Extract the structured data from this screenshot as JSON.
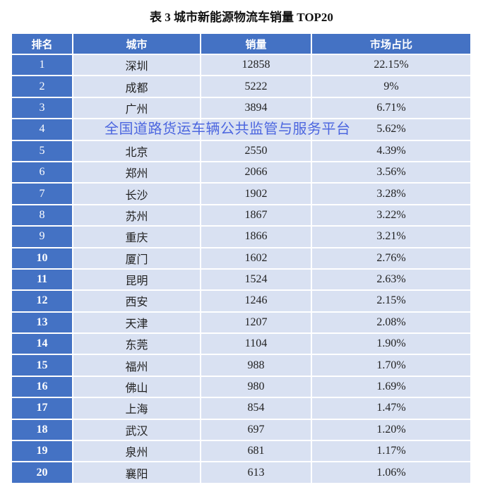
{
  "title": "表 3  城市新能源物流车销量 TOP20",
  "watermark": "全国道路货运车辆公共监管与服务平台",
  "colors": {
    "header_bg": "#4472c4",
    "cell_bg": "#d9e1f2",
    "watermark": "#3250dc"
  },
  "headers": [
    "排名",
    "城市",
    "销量",
    "市场占比"
  ],
  "rows": [
    {
      "rank": "1",
      "city": "深圳",
      "sales": "12858",
      "share": "22.15%"
    },
    {
      "rank": "2",
      "city": "成都",
      "sales": "5222",
      "share": "9%"
    },
    {
      "rank": "3",
      "city": "广州",
      "sales": "3894",
      "share": "6.71%"
    },
    {
      "rank": "4",
      "city": "",
      "sales": "",
      "share": "5.62%"
    },
    {
      "rank": "5",
      "city": "北京",
      "sales": "2550",
      "share": "4.39%"
    },
    {
      "rank": "6",
      "city": "郑州",
      "sales": "2066",
      "share": "3.56%"
    },
    {
      "rank": "7",
      "city": "长沙",
      "sales": "1902",
      "share": "3.28%"
    },
    {
      "rank": "8",
      "city": "苏州",
      "sales": "1867",
      "share": "3.22%"
    },
    {
      "rank": "9",
      "city": "重庆",
      "sales": "1866",
      "share": "3.21%"
    },
    {
      "rank": "10",
      "city": "厦门",
      "sales": "1602",
      "share": "2.76%"
    },
    {
      "rank": "11",
      "city": "昆明",
      "sales": "1524",
      "share": "2.63%"
    },
    {
      "rank": "12",
      "city": "西安",
      "sales": "1246",
      "share": "2.15%"
    },
    {
      "rank": "13",
      "city": "天津",
      "sales": "1207",
      "share": "2.08%"
    },
    {
      "rank": "14",
      "city": "东莞",
      "sales": "1104",
      "share": "1.90%"
    },
    {
      "rank": "15",
      "city": "福州",
      "sales": "988",
      "share": "1.70%"
    },
    {
      "rank": "16",
      "city": "佛山",
      "sales": "980",
      "share": "1.69%"
    },
    {
      "rank": "17",
      "city": "上海",
      "sales": "854",
      "share": "1.47%"
    },
    {
      "rank": "18",
      "city": "武汉",
      "sales": "697",
      "share": "1.20%"
    },
    {
      "rank": "19",
      "city": "泉州",
      "sales": "681",
      "share": "1.17%"
    },
    {
      "rank": "20",
      "city": "襄阳",
      "sales": "613",
      "share": "1.06%"
    }
  ]
}
